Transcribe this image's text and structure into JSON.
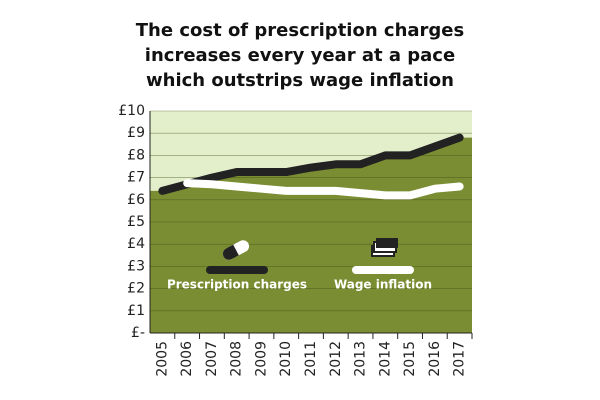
{
  "chart_data": {
    "type": "line",
    "title": "The cost of prescription charges increases every year at a pace which outstrips wage inflation",
    "categories": [
      "2005",
      "2006",
      "2007",
      "2008",
      "2009",
      "2010",
      "2011",
      "2012",
      "2013",
      "2014",
      "2015",
      "2016",
      "2017"
    ],
    "series": [
      {
        "name": "Prescription charges",
        "color": "#222222",
        "values": [
          6.4,
          6.7,
          7.0,
          7.25,
          7.25,
          7.25,
          7.45,
          7.6,
          7.6,
          8.0,
          8.0,
          8.4,
          8.8
        ]
      },
      {
        "name": "Wage inflation",
        "color": "#ffffff",
        "values": [
          null,
          6.75,
          6.7,
          6.6,
          6.5,
          6.4,
          6.4,
          6.4,
          6.3,
          6.2,
          6.2,
          6.5,
          6.6
        ]
      }
    ],
    "ylim": [
      0,
      10
    ],
    "yticks": [
      {
        "value": 0,
        "label": "£-"
      },
      {
        "value": 1,
        "label": "£1"
      },
      {
        "value": 2,
        "label": "£2"
      },
      {
        "value": 3,
        "label": "£3"
      },
      {
        "value": 4,
        "label": "£4"
      },
      {
        "value": 5,
        "label": "£5"
      },
      {
        "value": 6,
        "label": "£6"
      },
      {
        "value": 7,
        "label": "£7"
      },
      {
        "value": 8,
        "label": "£8"
      },
      {
        "value": 9,
        "label": "£9"
      },
      {
        "value": 10,
        "label": "£10"
      }
    ],
    "grid": true
  }
}
